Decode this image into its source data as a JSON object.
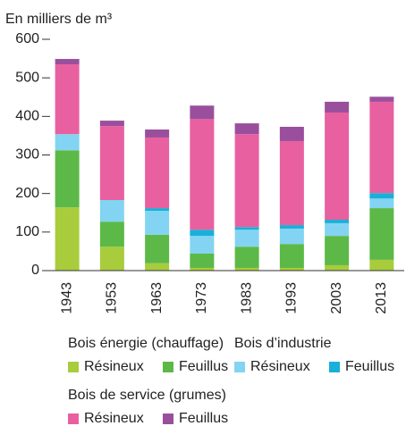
{
  "chart_data": {
    "type": "stacked_bar",
    "title": "En milliers de m³",
    "categories": [
      "1943",
      "1953",
      "1963",
      "1973",
      "1983",
      "1993",
      "2003",
      "2013"
    ],
    "series": [
      {
        "group": "Bois énergie (chauffage)",
        "name": "Résineux",
        "color": "#a8cc3c",
        "values": [
          164,
          62,
          19,
          7,
          7,
          7,
          14,
          28
        ]
      },
      {
        "group": "Bois énergie (chauffage)",
        "name": "Feuillus",
        "color": "#5cb947",
        "values": [
          148,
          65,
          74,
          37,
          55,
          62,
          76,
          134
        ]
      },
      {
        "group": "Bois d’industrie",
        "name": "Résineux",
        "color": "#82d4f2",
        "values": [
          42,
          56,
          62,
          46,
          44,
          40,
          33,
          25
        ]
      },
      {
        "group": "Bois d’industrie",
        "name": "Feuillus",
        "color": "#18b0d8",
        "values": [
          0,
          0,
          7,
          16,
          7,
          9,
          9,
          14
        ]
      },
      {
        "group": "Bois de service (grumes)",
        "name": "Résineux",
        "color": "#e860a0",
        "values": [
          181,
          192,
          183,
          287,
          241,
          218,
          278,
          237
        ]
      },
      {
        "group": "Bois de service (grumes)",
        "name": "Feuillus",
        "color": "#9a4f9d",
        "values": [
          14,
          14,
          21,
          35,
          28,
          37,
          28,
          13
        ]
      }
    ],
    "ylim": [
      0,
      600
    ],
    "yticks": [
      0,
      100,
      200,
      300,
      400,
      500,
      600
    ],
    "grid": false
  }
}
